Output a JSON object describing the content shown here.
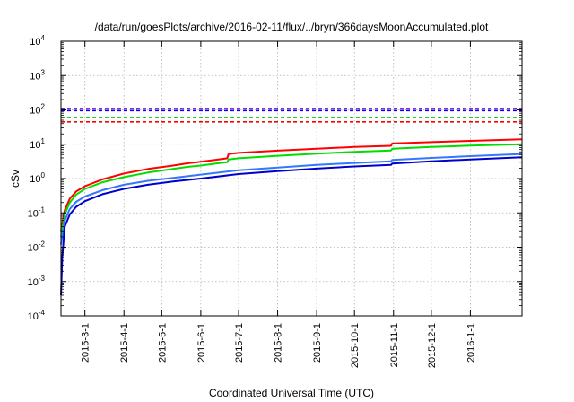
{
  "chart_data": {
    "type": "line",
    "title": "/data/run/goesPlots/archive/2016-02-11/flux/../bryn/366daysMoonAccumulated.plot",
    "xlabel": "Coordinated Universal Time (UTC)",
    "ylabel": "cSv",
    "y_scale": "log",
    "ylim": [
      0.0001,
      10000
    ],
    "xlim": [
      "2015-02-10",
      "2016-02-11"
    ],
    "grid": true,
    "y_ticks": [
      {
        "base": "10",
        "exp": "-4",
        "value": 0.0001
      },
      {
        "base": "10",
        "exp": "-3",
        "value": 0.001
      },
      {
        "base": "10",
        "exp": "-2",
        "value": 0.01
      },
      {
        "base": "10",
        "exp": "-1",
        "value": 0.1
      },
      {
        "base": "10",
        "exp": "0",
        "value": 1
      },
      {
        "base": "10",
        "exp": "1",
        "value": 10
      },
      {
        "base": "10",
        "exp": "2",
        "value": 100
      },
      {
        "base": "10",
        "exp": "3",
        "value": 1000
      },
      {
        "base": "10",
        "exp": "4",
        "value": 10000
      }
    ],
    "x_ticks": [
      {
        "label": "2015-3-1",
        "date": "2015-03-01"
      },
      {
        "label": "2015-4-1",
        "date": "2015-04-01"
      },
      {
        "label": "2015-5-1",
        "date": "2015-05-01"
      },
      {
        "label": "2015-6-1",
        "date": "2015-06-01"
      },
      {
        "label": "2015-7-1",
        "date": "2015-07-01"
      },
      {
        "label": "2015-8-1",
        "date": "2015-08-01"
      },
      {
        "label": "2015-9-1",
        "date": "2015-09-01"
      },
      {
        "label": "2015-10-1",
        "date": "2015-10-01"
      },
      {
        "label": "2015-11-1",
        "date": "2015-11-01"
      },
      {
        "label": "2015-12-1",
        "date": "2015-12-01"
      },
      {
        "label": "2016-1-1",
        "date": "2016-01-01"
      }
    ],
    "thresholds": [
      {
        "color": "#9400d3",
        "value": 110
      },
      {
        "color": "#0000ff",
        "value": 95
      },
      {
        "color": "#00cc00",
        "value": 60
      },
      {
        "color": "#ff0000",
        "value": 45
      }
    ],
    "series": [
      {
        "color": "#ff0000",
        "points": [
          [
            "2015-02-10",
            0.03
          ],
          [
            "2015-02-13",
            0.12
          ],
          [
            "2015-02-17",
            0.26
          ],
          [
            "2015-02-22",
            0.42
          ],
          [
            "2015-03-01",
            0.6
          ],
          [
            "2015-03-15",
            0.95
          ],
          [
            "2015-04-01",
            1.4
          ],
          [
            "2015-04-20",
            1.9
          ],
          [
            "2015-05-10",
            2.4
          ],
          [
            "2015-05-22",
            2.8
          ],
          [
            "2015-06-01",
            3.1
          ],
          [
            "2015-06-15",
            3.6
          ],
          [
            "2015-06-22",
            3.9
          ],
          [
            "2015-06-23",
            5.2
          ],
          [
            "2015-07-01",
            5.6
          ],
          [
            "2015-08-01",
            6.5
          ],
          [
            "2015-09-01",
            7.4
          ],
          [
            "2015-10-01",
            8.3
          ],
          [
            "2015-10-30",
            9.0
          ],
          [
            "2015-10-31",
            10.5
          ],
          [
            "2015-12-01",
            11.5
          ],
          [
            "2016-01-01",
            12.5
          ],
          [
            "2016-02-11",
            14.0
          ]
        ]
      },
      {
        "color": "#00dd00",
        "points": [
          [
            "2015-02-10",
            0.02
          ],
          [
            "2015-02-13",
            0.09
          ],
          [
            "2015-02-17",
            0.2
          ],
          [
            "2015-02-22",
            0.34
          ],
          [
            "2015-03-01",
            0.5
          ],
          [
            "2015-03-15",
            0.78
          ],
          [
            "2015-04-01",
            1.1
          ],
          [
            "2015-04-20",
            1.5
          ],
          [
            "2015-05-10",
            1.9
          ],
          [
            "2015-05-22",
            2.2
          ],
          [
            "2015-06-01",
            2.4
          ],
          [
            "2015-06-15",
            2.8
          ],
          [
            "2015-06-22",
            3.0
          ],
          [
            "2015-06-23",
            3.6
          ],
          [
            "2015-07-01",
            3.9
          ],
          [
            "2015-08-01",
            4.6
          ],
          [
            "2015-09-01",
            5.3
          ],
          [
            "2015-10-01",
            6.0
          ],
          [
            "2015-10-30",
            6.6
          ],
          [
            "2015-10-31",
            7.4
          ],
          [
            "2015-12-01",
            8.3
          ],
          [
            "2016-01-01",
            9.1
          ],
          [
            "2016-02-11",
            10.0
          ]
        ]
      },
      {
        "color": "#3377ff",
        "points": [
          [
            "2015-02-10",
            0.012
          ],
          [
            "2015-02-13",
            0.06
          ],
          [
            "2015-02-17",
            0.13
          ],
          [
            "2015-02-22",
            0.21
          ],
          [
            "2015-03-01",
            0.3
          ],
          [
            "2015-03-15",
            0.46
          ],
          [
            "2015-04-01",
            0.66
          ],
          [
            "2015-04-20",
            0.86
          ],
          [
            "2015-05-10",
            1.05
          ],
          [
            "2015-06-01",
            1.3
          ],
          [
            "2015-07-01",
            1.75
          ],
          [
            "2015-08-01",
            2.1
          ],
          [
            "2015-09-01",
            2.5
          ],
          [
            "2015-10-01",
            2.85
          ],
          [
            "2015-10-30",
            3.2
          ],
          [
            "2015-10-31",
            3.5
          ],
          [
            "2015-12-01",
            4.0
          ],
          [
            "2016-01-01",
            4.5
          ],
          [
            "2016-02-11",
            5.2
          ]
        ]
      },
      {
        "color": "#0000cc",
        "points": [
          [
            "2015-02-10",
            0.0004
          ],
          [
            "2015-02-11",
            0.005
          ],
          [
            "2015-02-13",
            0.04
          ],
          [
            "2015-02-17",
            0.09
          ],
          [
            "2015-02-22",
            0.15
          ],
          [
            "2015-03-01",
            0.22
          ],
          [
            "2015-03-15",
            0.35
          ],
          [
            "2015-04-01",
            0.5
          ],
          [
            "2015-04-20",
            0.66
          ],
          [
            "2015-05-10",
            0.82
          ],
          [
            "2015-06-01",
            1.0
          ],
          [
            "2015-07-01",
            1.35
          ],
          [
            "2015-08-01",
            1.65
          ],
          [
            "2015-09-01",
            1.95
          ],
          [
            "2015-10-01",
            2.25
          ],
          [
            "2015-10-30",
            2.5
          ],
          [
            "2015-10-31",
            2.75
          ],
          [
            "2015-12-01",
            3.2
          ],
          [
            "2016-01-01",
            3.6
          ],
          [
            "2016-02-11",
            4.2
          ]
        ]
      }
    ]
  }
}
